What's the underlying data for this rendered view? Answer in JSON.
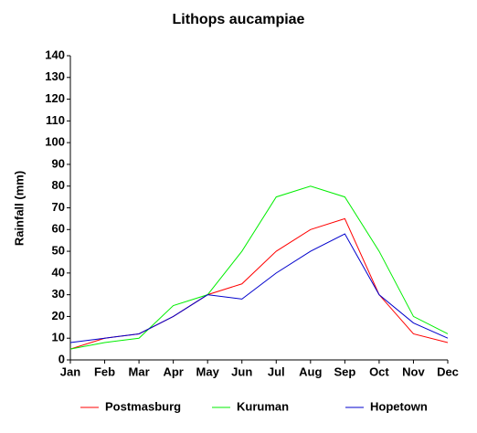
{
  "chart_data": {
    "type": "line",
    "title": "Lithops aucampiae",
    "y_label": "Rainfall (mm)",
    "categories": [
      "Jan",
      "Feb",
      "Mar",
      "Apr",
      "May",
      "Jun",
      "Jul",
      "Aug",
      "Sep",
      "Oct",
      "Nov",
      "Dec"
    ],
    "series": [
      {
        "name": "Postmasburg",
        "color": "#ff0000",
        "values": [
          5,
          10,
          12,
          20,
          30,
          35,
          50,
          60,
          65,
          30,
          12,
          8
        ]
      },
      {
        "name": "Kuruman",
        "color": "#00ee00",
        "values": [
          5,
          8,
          10,
          25,
          30,
          50,
          75,
          80,
          75,
          50,
          20,
          12
        ]
      },
      {
        "name": "Hopetown",
        "color": "#0000cc",
        "values": [
          8,
          10,
          12,
          20,
          30,
          28,
          40,
          50,
          58,
          30,
          17,
          10
        ]
      }
    ],
    "ylim": [
      0,
      140
    ],
    "yticks": [
      0,
      10,
      20,
      30,
      40,
      50,
      60,
      70,
      80,
      90,
      100,
      110,
      120,
      130,
      140
    ],
    "grid": false,
    "legend": "bottom"
  }
}
